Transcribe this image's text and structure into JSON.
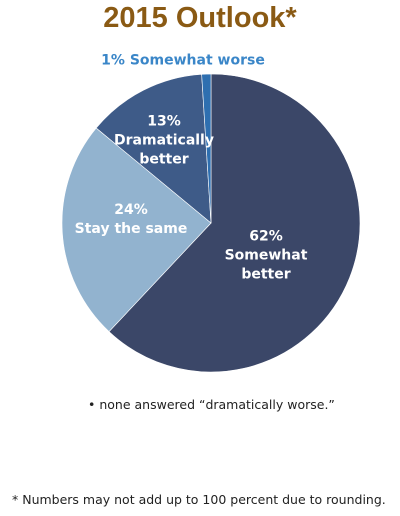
{
  "chart_data": {
    "type": "pie",
    "title": "2015 Outlook*",
    "categories": [
      "Somewhat better",
      "Stay the same",
      "Dramatically better",
      "Somewhat worse"
    ],
    "values": [
      62,
      24,
      13,
      1
    ],
    "value_labels": [
      "62%",
      "24%",
      "13%",
      "1%"
    ],
    "colors": [
      "#3b4768",
      "#92b3cf",
      "#3e5b88",
      "#2e6fb0"
    ],
    "label_colors": [
      "#ffffff",
      "#ffffff",
      "#ffffff",
      "#3a86c8"
    ],
    "notes": [
      "• none answered “dramatically worse.”",
      "* Numbers may not add up to 100 percent due to rounding."
    ]
  }
}
